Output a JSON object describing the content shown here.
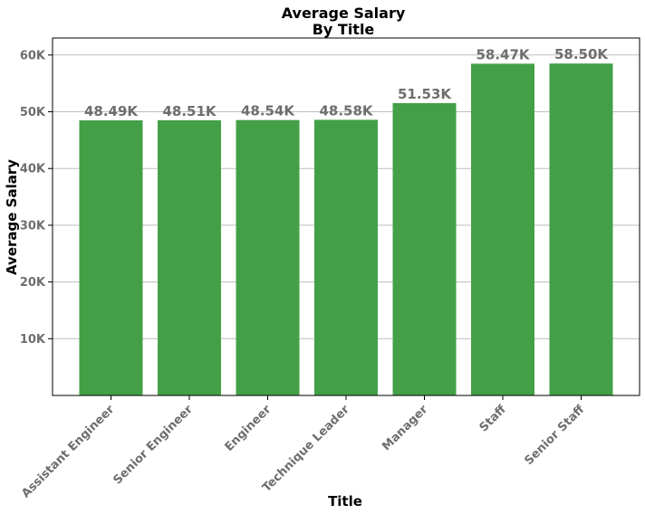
{
  "chart_data": {
    "type": "bar",
    "title_lines": [
      "Average Salary",
      "By Title"
    ],
    "xlabel": "Title",
    "ylabel": "Average Salary",
    "categories": [
      "Assistant Engineer",
      "Senior Engineer",
      "Engineer",
      "Technique Leader",
      "Manager",
      "Staff",
      "Senior Staff"
    ],
    "values": [
      48490,
      48510,
      48540,
      48580,
      51530,
      58470,
      58500
    ],
    "data_labels": [
      "48.49K",
      "48.51K",
      "48.54K",
      "48.58K",
      "51.53K",
      "58.47K",
      "58.50K"
    ],
    "ylim": [
      0,
      63000
    ],
    "yticks": [
      10000,
      20000,
      30000,
      40000,
      50000,
      60000
    ],
    "ytick_labels": [
      "10K",
      "20K",
      "30K",
      "40K",
      "50K",
      "60K"
    ],
    "bar_color": "#43a047",
    "grid": "horizontal"
  }
}
